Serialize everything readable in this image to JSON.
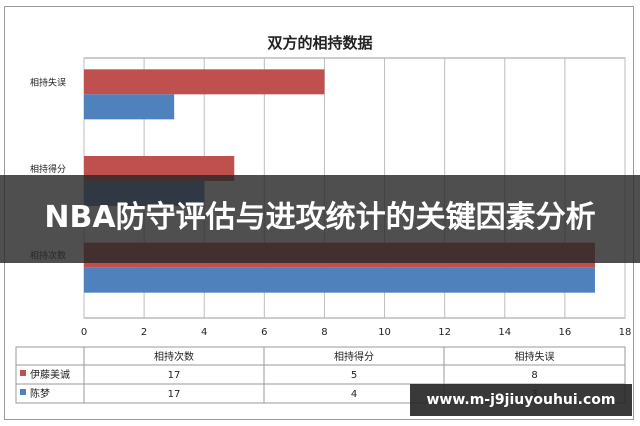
{
  "chart_data": {
    "type": "bar",
    "orientation": "horizontal",
    "title": "双方的相持数据",
    "categories": [
      "相持失误",
      "相持得分",
      "相持次数"
    ],
    "series": [
      {
        "name": "伊藤美诚",
        "color": "#c0504d",
        "values": [
          8,
          5,
          17
        ]
      },
      {
        "name": "陈梦",
        "color": "#4f81bd",
        "values": [
          3,
          4,
          17
        ]
      }
    ],
    "xlim": [
      0,
      18
    ],
    "xticks": [
      "0",
      "2",
      "4",
      "6",
      "8",
      "10",
      "12",
      "14",
      "16",
      "18"
    ],
    "grid": true,
    "table": {
      "headers": [
        "相持次数",
        "相持得分",
        "相持失误"
      ],
      "rows": [
        {
          "name": "伊藤美诚",
          "cells": [
            "17",
            "5",
            "8"
          ]
        },
        {
          "name": "陈梦",
          "cells": [
            "17",
            "4",
            "3"
          ]
        }
      ]
    }
  },
  "overlay": {
    "banner": "NBA防守评估与进攻统计的关键因素分析",
    "url": "www.m-j9jiuyouhui.com"
  }
}
